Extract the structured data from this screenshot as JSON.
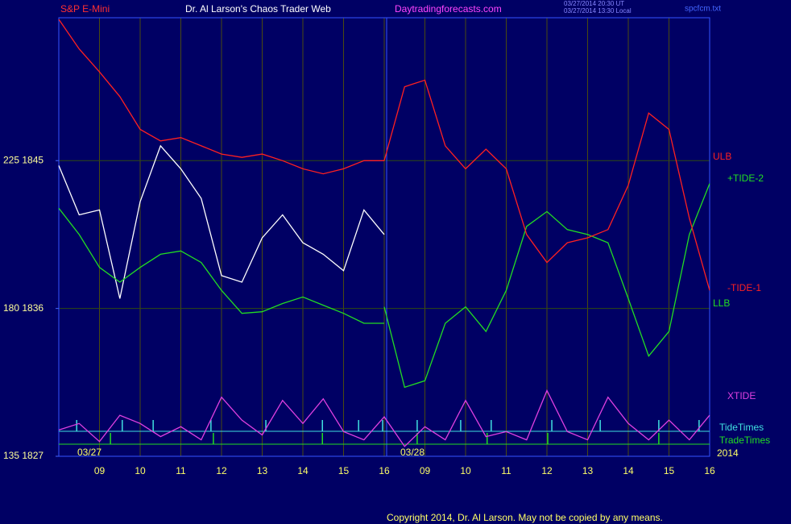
{
  "chart_data": {
    "type": "line",
    "title": "S&P E-Mini",
    "subtitle": "Dr. Al Larson's Chaos Trader Web",
    "website": "Daytradingforecasts.com",
    "timestamps": [
      "03/27/2014 20:30 UT",
      "03/27/2014 13:30 Local"
    ],
    "file_name": "spcfcm.txt",
    "date_labels": [
      "03/27",
      "03/28",
      "2014"
    ],
    "copyright": "Copyright 2014, Dr. Al Larson. May not be copied by any means.",
    "xlim": [
      0,
      16
    ],
    "xticks": [
      {
        "value": 1,
        "label": "09"
      },
      {
        "value": 2,
        "label": "10"
      },
      {
        "value": 3,
        "label": "11"
      },
      {
        "value": 4,
        "label": "12"
      },
      {
        "value": 5,
        "label": "13"
      },
      {
        "value": 6,
        "label": "14"
      },
      {
        "value": 7,
        "label": "15"
      },
      {
        "value": 8,
        "label": "16"
      },
      {
        "value": 9,
        "label": "09"
      },
      {
        "value": 10,
        "label": "10"
      },
      {
        "value": 11,
        "label": "11"
      },
      {
        "value": 12,
        "label": "12"
      },
      {
        "value": 13,
        "label": "13"
      },
      {
        "value": 14,
        "label": "14"
      },
      {
        "value": 15,
        "label": "15"
      },
      {
        "value": 16,
        "label": "16"
      }
    ],
    "ylim": [
      1827,
      1853.7
    ],
    "yticks": [
      {
        "value": 1845,
        "label": "225  1845"
      },
      {
        "value": 1836,
        "label": "180  1836"
      },
      {
        "value": 1827,
        "label": "135  1827"
      }
    ],
    "grid": true,
    "x": [
      0,
      0.5,
      1,
      1.5,
      2,
      2.5,
      3,
      3.5,
      4,
      4.5,
      5,
      5.5,
      6,
      6.5,
      7,
      7.5,
      8,
      8.5,
      9,
      9.5,
      10,
      10.5,
      11,
      11.5,
      12,
      12.5,
      13,
      13.5,
      14,
      14.5,
      15,
      15.5,
      16
    ],
    "series": [
      {
        "color": "#ffffff",
        "values": [
          1844.7,
          1841.7,
          1842,
          1836.6,
          1842.5,
          1845.9,
          1844.5,
          1842.7,
          1838,
          1837.6,
          1840.3,
          1841.7,
          1840,
          1839.3,
          1838.3,
          1842,
          1840.5,
          null,
          null,
          null,
          null,
          null,
          null,
          null,
          null,
          null,
          null,
          null,
          null,
          null,
          null,
          null,
          null
        ]
      },
      {
        "name": "ULB",
        "color": "#ff2020",
        "values": [
          1853.6,
          1851.8,
          1850.4,
          1848.9,
          1846.9,
          1846.2,
          1846.4,
          1845.9,
          1845.4,
          1845.2,
          1845.4,
          1845,
          1844.5,
          1844.2,
          1844.5,
          1845,
          1845,
          null,
          null,
          null,
          null,
          null,
          null,
          null,
          null,
          null,
          null,
          null,
          null,
          null,
          null,
          null,
          null
        ]
      },
      {
        "name": "+TIDE-2",
        "color": "#22dd22",
        "values": [
          null,
          null,
          null,
          null,
          null,
          null,
          null,
          null,
          null,
          null,
          null,
          null,
          null,
          null,
          null,
          null,
          1836.1,
          1831.2,
          1831.6,
          1835.1,
          1836.1,
          1834.6,
          1837.1,
          1841,
          1841.9,
          1840.8,
          1840.5,
          1840,
          1836.6,
          1833.1,
          1834.6,
          1840.5,
          1843.6
        ]
      },
      {
        "name": "-TIDE-1",
        "color": "#ff2020",
        "values": [
          null,
          null,
          null,
          null,
          null,
          null,
          null,
          null,
          null,
          null,
          null,
          null,
          null,
          null,
          null,
          null,
          1845,
          1849.5,
          1849.9,
          1845.9,
          1844.5,
          1845.7,
          1844.5,
          1840.5,
          1838.8,
          1840,
          1840.3,
          1840.8,
          1843.5,
          1847.9,
          1846.9,
          1841.5,
          1837.1
        ]
      },
      {
        "name": "LLB",
        "color": "#22dd22",
        "values": [
          1842.1,
          1840.5,
          1838.5,
          1837.6,
          1838.5,
          1839.3,
          1839.5,
          1838.8,
          1837.1,
          1835.7,
          1835.8,
          1836.3,
          1836.7,
          1836.2,
          1835.7,
          1835.1,
          1835.1,
          null,
          null,
          null,
          null,
          null,
          null,
          null,
          null,
          null,
          null,
          null,
          null,
          null,
          null,
          null,
          null
        ]
      },
      {
        "name": "XTIDE",
        "color": "#e040e0",
        "values": [
          1828.6,
          1829,
          1827.9,
          1829.5,
          1829,
          1828.2,
          1828.8,
          1828,
          1830.6,
          1829.2,
          1828.3,
          1830.4,
          1829,
          1830.5,
          1828.5,
          1828,
          1829.4,
          1827.6,
          1828.8,
          1828,
          1830.4,
          1828.2,
          1828.5,
          1828,
          1831,
          1828.5,
          1828,
          1830.6,
          1829,
          1828,
          1829.2,
          1828,
          1829.5
        ]
      }
    ],
    "events": [
      {
        "name": "TideTimes",
        "color": "#40e0e0",
        "x": [
          0.44,
          1.56,
          2.32,
          3.74,
          5.09,
          6.48,
          7.37,
          7.96,
          8.81,
          9.88,
          10.63,
          12.12,
          13.31,
          14.75,
          15.74
        ]
      },
      {
        "name": "TradeTimes",
        "color": "#22dd22",
        "x": [
          1.27,
          3.8,
          6.48,
          8.81,
          10.53,
          12.02,
          14.75
        ]
      }
    ]
  }
}
